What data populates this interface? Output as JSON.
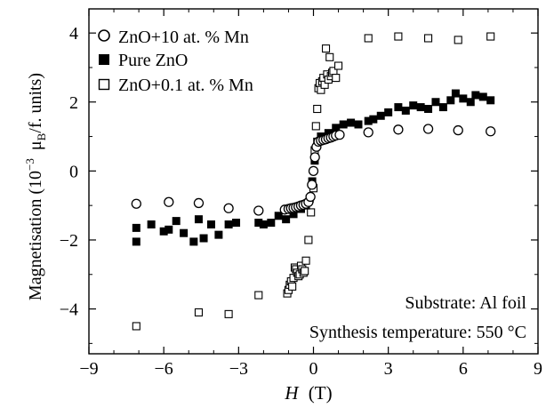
{
  "chart_data": {
    "type": "scatter",
    "xlabel": "H",
    "xlabel_unit": "(T)",
    "ylabel_prefix": "Magnetisation (10",
    "ylabel_exp": "−3",
    "ylabel_mu": "μ",
    "ylabel_sub": "B",
    "ylabel_suffix": "/f. units)",
    "xlim": [
      -9,
      9
    ],
    "ylim": [
      -5.3,
      4.7
    ],
    "xticks": [
      -9,
      -6,
      -3,
      0,
      3,
      6,
      9
    ],
    "xtick_labels": [
      "−9",
      "−6",
      "−3",
      "0",
      "3",
      "6",
      "9"
    ],
    "yticks": [
      -4,
      -2,
      0,
      2,
      4
    ],
    "ytick_labels": [
      "−4",
      "−2",
      "0",
      "2",
      "4"
    ],
    "grid": false,
    "legend_position": "top-left",
    "annotations": [
      "Substrate: Al foil",
      "Synthesis temperature: 550 °C"
    ],
    "series": [
      {
        "name": "ZnO+10 at. % Mn",
        "marker": "open-circle",
        "points": [
          [
            -7.1,
            -0.95
          ],
          [
            -5.8,
            -0.9
          ],
          [
            -4.6,
            -0.93
          ],
          [
            -3.4,
            -1.08
          ],
          [
            -2.2,
            -1.15
          ],
          [
            -1.15,
            -1.12
          ],
          [
            -1.0,
            -1.1
          ],
          [
            -0.9,
            -1.08
          ],
          [
            -0.8,
            -1.07
          ],
          [
            -0.7,
            -1.05
          ],
          [
            -0.6,
            -1.03
          ],
          [
            -0.5,
            -1.0
          ],
          [
            -0.4,
            -0.98
          ],
          [
            -0.3,
            -0.95
          ],
          [
            -0.2,
            -0.9
          ],
          [
            -0.12,
            -0.75
          ],
          [
            -0.06,
            -0.4
          ],
          [
            0.0,
            0.0
          ],
          [
            0.06,
            0.4
          ],
          [
            0.12,
            0.7
          ],
          [
            0.2,
            0.85
          ],
          [
            0.3,
            0.88
          ],
          [
            0.4,
            0.9
          ],
          [
            0.5,
            0.92
          ],
          [
            0.6,
            0.95
          ],
          [
            0.7,
            0.97
          ],
          [
            0.8,
            1.0
          ],
          [
            0.9,
            1.03
          ],
          [
            1.05,
            1.05
          ],
          [
            2.2,
            1.12
          ],
          [
            3.4,
            1.2
          ],
          [
            4.6,
            1.22
          ],
          [
            5.8,
            1.18
          ],
          [
            7.1,
            1.15
          ]
        ]
      },
      {
        "name": "Pure ZnO",
        "marker": "filled-square",
        "points": [
          [
            -7.1,
            -1.65
          ],
          [
            -7.1,
            -2.05
          ],
          [
            -6.5,
            -1.55
          ],
          [
            -6.0,
            -1.75
          ],
          [
            -5.8,
            -1.7
          ],
          [
            -5.5,
            -1.45
          ],
          [
            -5.2,
            -1.8
          ],
          [
            -4.8,
            -2.05
          ],
          [
            -4.6,
            -1.4
          ],
          [
            -4.4,
            -1.95
          ],
          [
            -4.1,
            -1.55
          ],
          [
            -3.8,
            -1.85
          ],
          [
            -3.4,
            -1.55
          ],
          [
            -3.1,
            -1.5
          ],
          [
            -2.2,
            -1.5
          ],
          [
            -2.0,
            -1.55
          ],
          [
            -1.7,
            -1.5
          ],
          [
            -1.4,
            -1.3
          ],
          [
            -1.1,
            -1.4
          ],
          [
            -0.8,
            -1.25
          ],
          [
            -0.5,
            -1.1
          ],
          [
            -0.3,
            -1.0
          ],
          [
            -0.15,
            -0.8
          ],
          [
            -0.05,
            -0.3
          ],
          [
            0.05,
            0.3
          ],
          [
            0.15,
            0.85
          ],
          [
            0.3,
            1.0
          ],
          [
            0.6,
            1.1
          ],
          [
            0.9,
            1.25
          ],
          [
            1.2,
            1.35
          ],
          [
            1.5,
            1.4
          ],
          [
            1.8,
            1.35
          ],
          [
            2.2,
            1.45
          ],
          [
            2.4,
            1.5
          ],
          [
            2.7,
            1.6
          ],
          [
            3.0,
            1.7
          ],
          [
            3.4,
            1.85
          ],
          [
            3.7,
            1.75
          ],
          [
            4.0,
            1.9
          ],
          [
            4.3,
            1.85
          ],
          [
            4.6,
            1.8
          ],
          [
            4.9,
            2.0
          ],
          [
            5.2,
            1.85
          ],
          [
            5.5,
            2.05
          ],
          [
            5.7,
            2.25
          ],
          [
            6.0,
            2.1
          ],
          [
            6.3,
            2.0
          ],
          [
            6.5,
            2.2
          ],
          [
            6.8,
            2.15
          ],
          [
            7.1,
            2.05
          ]
        ]
      },
      {
        "name": "ZnO+0.1 at. % Mn",
        "marker": "open-square",
        "points": [
          [
            -7.1,
            -4.5
          ],
          [
            -4.6,
            -4.1
          ],
          [
            -3.4,
            -4.15
          ],
          [
            -2.2,
            -3.6
          ],
          [
            -1.05,
            -3.55
          ],
          [
            -1.0,
            -3.45
          ],
          [
            -0.95,
            -3.3
          ],
          [
            -0.9,
            -3.2
          ],
          [
            -0.85,
            -3.35
          ],
          [
            -0.8,
            -3.1
          ],
          [
            -0.75,
            -2.8
          ],
          [
            -0.7,
            -2.85
          ],
          [
            -0.65,
            -2.95
          ],
          [
            -0.6,
            -3.05
          ],
          [
            -0.55,
            -3.0
          ],
          [
            -0.5,
            -2.75
          ],
          [
            -0.45,
            -2.85
          ],
          [
            -0.4,
            -2.95
          ],
          [
            -0.35,
            -2.9
          ],
          [
            -0.3,
            -2.6
          ],
          [
            -0.2,
            -2.0
          ],
          [
            -0.1,
            -1.2
          ],
          [
            0.0,
            -0.5
          ],
          [
            0.05,
            0.6
          ],
          [
            0.1,
            1.3
          ],
          [
            0.15,
            1.8
          ],
          [
            0.2,
            2.4
          ],
          [
            0.25,
            2.55
          ],
          [
            0.3,
            2.35
          ],
          [
            0.35,
            2.6
          ],
          [
            0.4,
            2.7
          ],
          [
            0.45,
            2.5
          ],
          [
            0.5,
            3.55
          ],
          [
            0.55,
            2.8
          ],
          [
            0.6,
            2.65
          ],
          [
            0.65,
            3.3
          ],
          [
            0.7,
            2.75
          ],
          [
            0.75,
            2.85
          ],
          [
            0.8,
            2.9
          ],
          [
            0.9,
            2.7
          ],
          [
            1.0,
            3.05
          ],
          [
            2.2,
            3.85
          ],
          [
            3.4,
            3.9
          ],
          [
            4.6,
            3.85
          ],
          [
            5.8,
            3.8
          ],
          [
            7.1,
            3.9
          ]
        ]
      }
    ]
  }
}
